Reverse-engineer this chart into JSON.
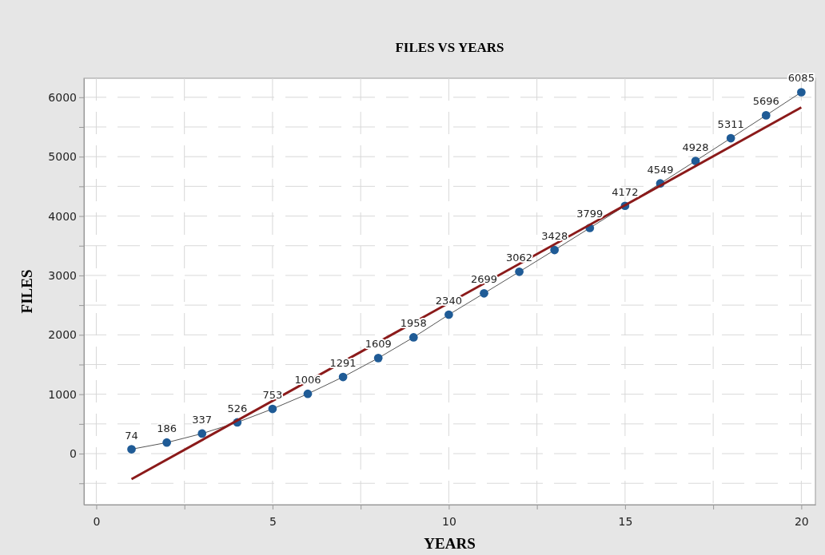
{
  "chart_data": {
    "type": "line",
    "title": "FILES VS YEARS",
    "xlabel": "YEARS",
    "ylabel": "FILES",
    "xlim": [
      -0.35,
      20.4
    ],
    "ylim": [
      -860,
      6320
    ],
    "xticks": [
      0,
      {
        "value": 2.5,
        "label": null
      },
      5,
      {
        "value": 7.5,
        "label": null
      },
      10,
      {
        "value": 12.5,
        "label": null
      },
      15,
      {
        "value": 17.5,
        "label": null
      },
      20
    ],
    "yticks": [
      {
        "value": -500,
        "label": null
      },
      0,
      {
        "value": 500,
        "label": null
      },
      1000,
      {
        "value": 1500,
        "label": null
      },
      2000,
      {
        "value": 2500,
        "label": null
      },
      3000,
      {
        "value": 3500,
        "label": null
      },
      4000,
      {
        "value": 4500,
        "label": null
      },
      5000,
      {
        "value": 5500,
        "label": null
      },
      6000
    ],
    "grid": true,
    "marker": "circle",
    "line_style": "solid",
    "series": [
      {
        "color": "#1f5b96",
        "x": [
          1,
          2,
          3,
          4,
          5,
          6,
          7,
          8,
          9,
          10,
          11,
          12,
          13,
          14,
          15,
          16,
          17,
          18,
          19,
          20
        ],
        "values": [
          74,
          186,
          337,
          526,
          753,
          1006,
          1291,
          1609,
          1958,
          2340,
          2699,
          3062,
          3428,
          3799,
          4172,
          4549,
          4928,
          5311,
          5696,
          6085
        ],
        "data_labels": true
      },
      {
        "color": "#8b1a1a",
        "x": [
          1,
          20
        ],
        "values": [
          -430,
          5830
        ],
        "marker": "none"
      }
    ]
  }
}
